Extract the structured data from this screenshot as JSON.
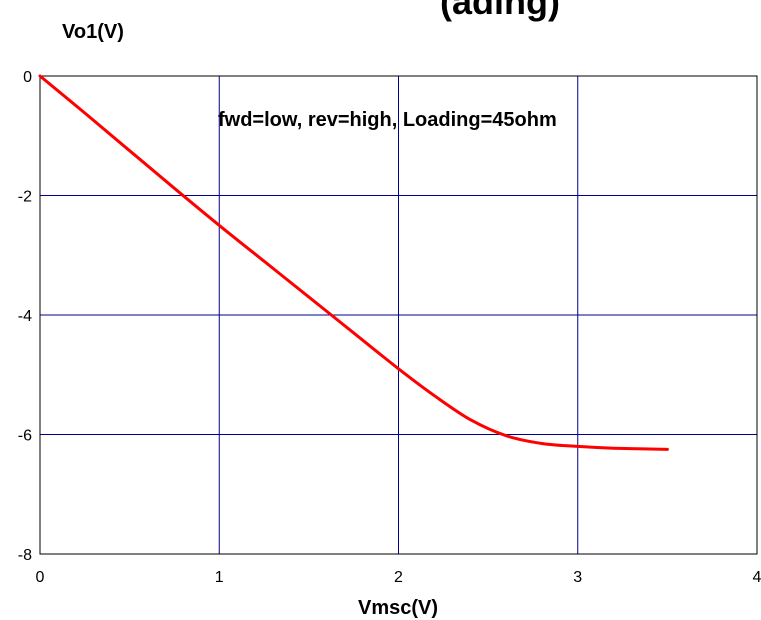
{
  "chart_data": {
    "type": "line",
    "title_fragment": "(ading)",
    "xlabel": "Vmsc(V)",
    "ylabel": "Vo1(V)",
    "xlim": [
      0,
      4
    ],
    "ylim": [
      -8,
      0
    ],
    "xticks": [
      "0",
      "1",
      "2",
      "3",
      "4"
    ],
    "yticks": [
      "0",
      "-2",
      "-4",
      "-6",
      "-8"
    ],
    "grid": true,
    "annotation": "fwd=low, rev=high, Loading=45ohm",
    "series": [
      {
        "x": [
          0,
          0.25,
          0.5,
          0.75,
          1.0,
          1.25,
          1.5,
          1.75,
          2.0,
          2.2,
          2.4,
          2.6,
          2.8,
          3.0,
          3.2,
          3.5
        ],
        "y": [
          0,
          -0.62,
          -1.25,
          -1.88,
          -2.5,
          -3.1,
          -3.7,
          -4.3,
          -4.9,
          -5.35,
          -5.75,
          -6.02,
          -6.15,
          -6.2,
          -6.23,
          -6.25
        ]
      }
    ],
    "colors": {
      "line": "#ff0000",
      "grid": "#00008b",
      "frame": "#000000"
    }
  }
}
